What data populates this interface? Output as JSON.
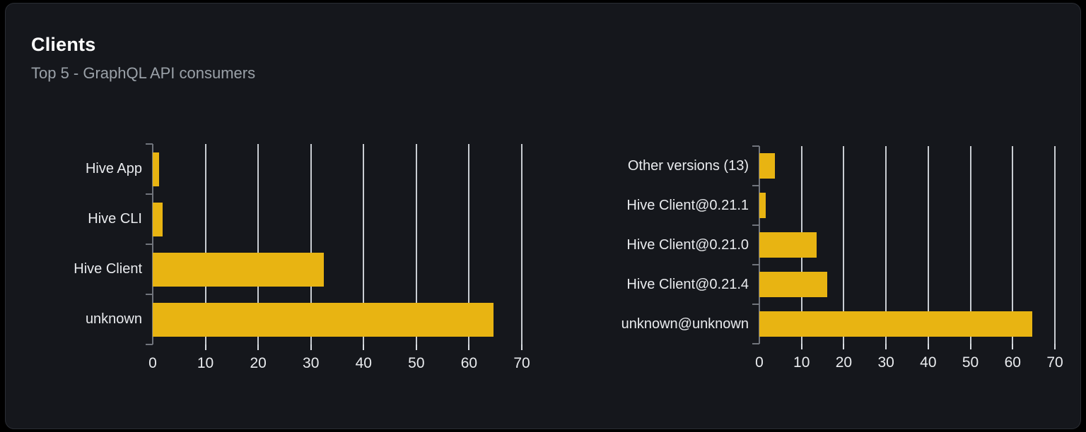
{
  "card": {
    "title": "Clients",
    "subtitle": "Top 5 - GraphQL API consumers"
  },
  "colors": {
    "page_background": "#000000",
    "panel_background": "#15171c",
    "panel_border": "#2a2d34",
    "bar": "#e8b412",
    "gridline": "#d9dde2",
    "axis": "#70747c",
    "category_label": "#e9ebee",
    "subtitle_text": "#9aa1a8",
    "title_text": "#ffffff"
  },
  "chart_data": [
    {
      "type": "bar",
      "orientation": "horizontal",
      "title": "",
      "categories": [
        "Hive App",
        "Hive CLI",
        "Hive Client",
        "unknown"
      ],
      "values": [
        1.2,
        1.9,
        32.5,
        64.6
      ],
      "xlabel": "",
      "ylabel": "",
      "xlim": [
        0,
        70
      ],
      "xticks": [
        0,
        10,
        20,
        30,
        40,
        50,
        60,
        70
      ],
      "grid": true,
      "legend": false
    },
    {
      "type": "bar",
      "orientation": "horizontal",
      "title": "",
      "categories": [
        "Other versions (13)",
        "Hive Client@0.21.1",
        "Hive Client@0.21.0",
        "Hive Client@0.21.4",
        "unknown@unknown"
      ],
      "values": [
        3.7,
        1.5,
        13.5,
        16.1,
        64.6
      ],
      "xlabel": "",
      "ylabel": "",
      "xlim": [
        0,
        70
      ],
      "xticks": [
        0,
        10,
        20,
        30,
        40,
        50,
        60,
        70
      ],
      "grid": true,
      "legend": false
    }
  ]
}
